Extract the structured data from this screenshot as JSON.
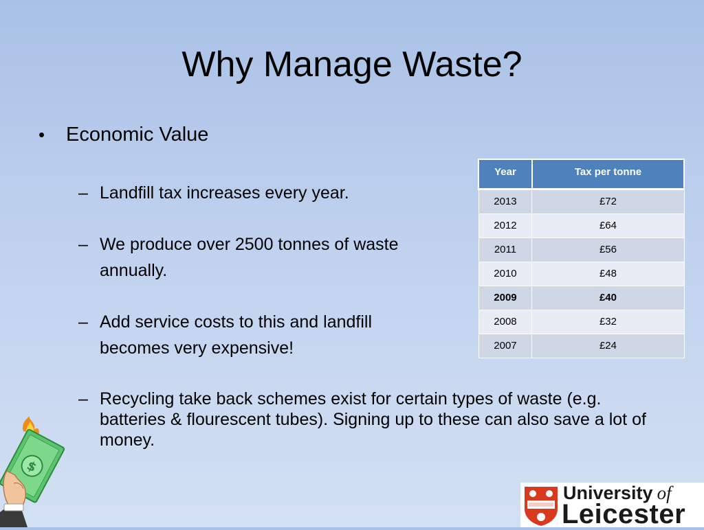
{
  "slide": {
    "title": "Why Manage Waste?",
    "bullet": "Economic Value",
    "bullet_symbol": "•",
    "dash_symbol": "–",
    "subpoints": [
      "Landfill tax increases every year.",
      "We produce over 2500 tonnes of waste annually.",
      "Add service costs to this and landfill becomes very expensive!",
      "Recycling take back schemes exist for certain types of waste (e.g. batteries & flourescent tubes). Signing up to these can also save a lot of money."
    ]
  },
  "table": {
    "headers": [
      "Year",
      "Tax per tonne"
    ],
    "rows": [
      {
        "year": "2013",
        "tax": "£72"
      },
      {
        "year": "2012",
        "tax": "£64"
      },
      {
        "year": "2011",
        "tax": "£56"
      },
      {
        "year": "2010",
        "tax": "£48"
      },
      {
        "year": "2009",
        "tax": "£40"
      },
      {
        "year": "2008",
        "tax": "£32"
      },
      {
        "year": "2007",
        "tax": "£24"
      }
    ],
    "header_color": "#4f81bd"
  },
  "logo": {
    "line1": "University",
    "of": "of",
    "line2": "Leicester",
    "shield_color": "#d9391e"
  }
}
